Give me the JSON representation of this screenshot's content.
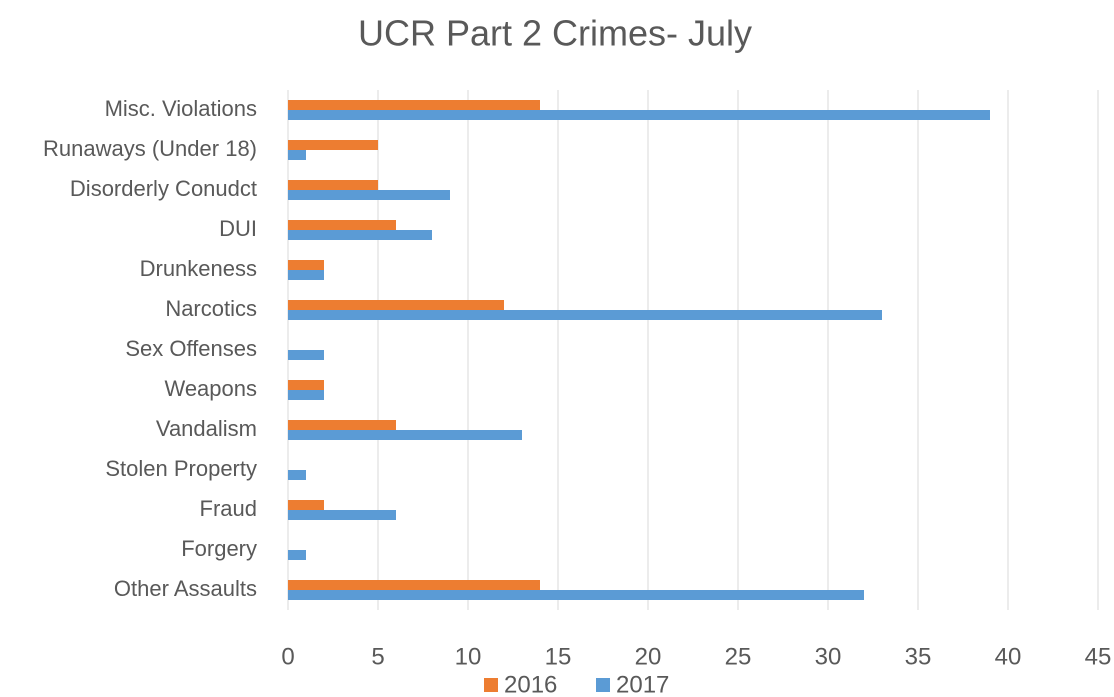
{
  "chart_data": {
    "type": "hbar",
    "title": "UCR Part 2 Crimes- July",
    "categories": [
      "Misc. Violations",
      "Runaways (Under 18)",
      "Disorderly Conudct",
      "DUI",
      "Drunkeness",
      "Narcotics",
      "Sex Offenses",
      "Weapons",
      "Vandalism",
      "Stolen Property",
      "Fraud",
      "Forgery",
      "Other Assaults"
    ],
    "series": [
      {
        "name": "2016",
        "color": "#ed7d31",
        "values": [
          14,
          5,
          5,
          6,
          2,
          12,
          0,
          2,
          6,
          0,
          2,
          0,
          14
        ]
      },
      {
        "name": "2017",
        "color": "#5b9bd5",
        "values": [
          39,
          1,
          9,
          8,
          2,
          33,
          2,
          2,
          13,
          1,
          6,
          1,
          32
        ]
      }
    ],
    "xlim": [
      0,
      45
    ],
    "xticks": [
      0,
      5,
      10,
      15,
      20,
      25,
      30,
      35,
      40,
      45
    ],
    "grid": true,
    "legend": "bottom"
  }
}
